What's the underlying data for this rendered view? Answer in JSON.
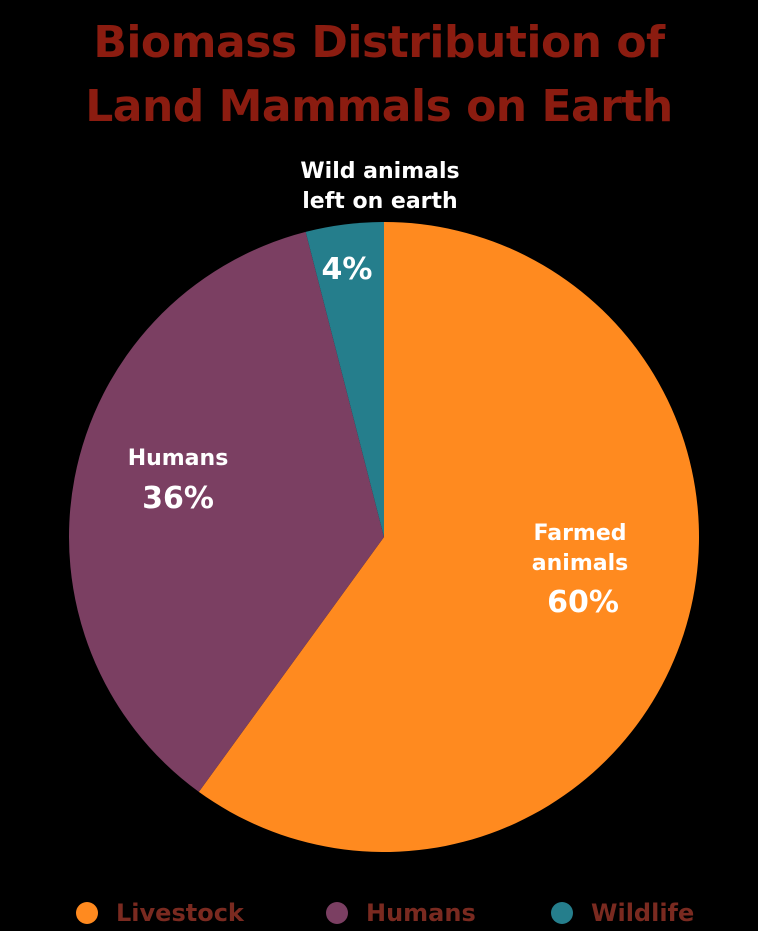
{
  "title_line1": "Biomass Distribution of",
  "title_line2": "Land Mammals on Earth",
  "title_color": "#8b1c10",
  "chart_data": {
    "type": "pie",
    "title": "Biomass Distribution of Land Mammals on Earth",
    "slices": [
      {
        "name": "Livestock",
        "label_lines": [
          "Farmed",
          "animals"
        ],
        "value": 60,
        "value_label": "60%",
        "color": "#ff8a1f",
        "label_color": "#ffffff"
      },
      {
        "name": "Humans",
        "label_lines": [
          "Humans"
        ],
        "value": 36,
        "value_label": "36%",
        "color": "#7b3f62",
        "label_color": "#ffffff"
      },
      {
        "name": "Wildlife",
        "label_lines": [
          "Wild animals",
          "left on earth"
        ],
        "value": 4,
        "value_label": "4%",
        "color": "#257e8c",
        "label_color": "#2a9aa6"
      }
    ],
    "legend": {
      "placement": "bottom",
      "entries": [
        "Livestock",
        "Humans",
        "Wildlife"
      ],
      "text_color": "#7a2a20"
    }
  }
}
